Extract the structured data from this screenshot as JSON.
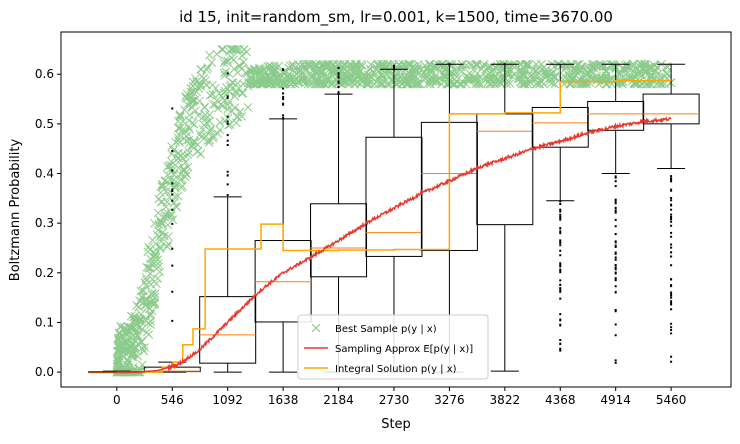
{
  "chart_data": {
    "type": "line",
    "title": "id 15, init=random_sm, lr=0.001, k=1500, time=3670.00",
    "xlabel": "Step",
    "ylabel": "Boltzmann Probability",
    "xlim": [
      -550,
      6050
    ],
    "ylim": [
      -0.03,
      0.685
    ],
    "xticks": [
      0,
      546,
      1092,
      1638,
      2184,
      2730,
      3276,
      3822,
      4368,
      4914,
      5460
    ],
    "xtick_labels": [
      "0",
      "546",
      "1092",
      "1638",
      "2184",
      "2730",
      "3276",
      "3822",
      "4368",
      "4914",
      "5460"
    ],
    "yticks": [
      0.0,
      0.1,
      0.2,
      0.3,
      0.4,
      0.5,
      0.6
    ],
    "ytick_labels": [
      "0.0",
      "0.1",
      "0.2",
      "0.3",
      "0.4",
      "0.5",
      "0.6"
    ],
    "legend_position": "lower-center",
    "legend": [
      {
        "label": "Best Sample p(y | x)",
        "color": "#2ca02c",
        "marker": "x"
      },
      {
        "label": "Sampling Approx E[p(y | x)]",
        "color": "#e8392f",
        "marker": "line"
      },
      {
        "label": "Integral Solution p(y | x)",
        "color": "#ffa500",
        "marker": "line"
      }
    ],
    "boxplots": [
      {
        "x": 0,
        "q1": 0.0,
        "median": 0.0,
        "q3": 0.001,
        "whisker_low": 0.0,
        "whisker_high": 0.002
      },
      {
        "x": 546,
        "q1": 0.001,
        "median": 0.002,
        "q3": 0.01,
        "whisker_low": 0.0,
        "whisker_high": 0.02
      },
      {
        "x": 1092,
        "q1": 0.018,
        "median": 0.075,
        "q3": 0.152,
        "whisker_low": 0.0,
        "whisker_high": 0.353
      },
      {
        "x": 1638,
        "q1": 0.101,
        "median": 0.182,
        "q3": 0.265,
        "whisker_low": 0.0,
        "whisker_high": 0.51
      },
      {
        "x": 2184,
        "q1": 0.192,
        "median": 0.25,
        "q3": 0.339,
        "whisker_low": 0.0,
        "whisker_high": 0.56
      },
      {
        "x": 2730,
        "q1": 0.233,
        "median": 0.281,
        "q3": 0.473,
        "whisker_low": 0.0,
        "whisker_high": 0.61
      },
      {
        "x": 3276,
        "q1": 0.245,
        "median": 0.4,
        "q3": 0.503,
        "whisker_low": 0.0,
        "whisker_high": 0.62
      },
      {
        "x": 3822,
        "q1": 0.297,
        "median": 0.485,
        "q3": 0.52,
        "whisker_low": 0.002,
        "whisker_high": 0.62
      },
      {
        "x": 4368,
        "q1": 0.453,
        "median": 0.502,
        "q3": 0.533,
        "whisker_low": 0.345,
        "whisker_high": 0.62
      },
      {
        "x": 4914,
        "q1": 0.487,
        "median": 0.52,
        "q3": 0.545,
        "whisker_low": 0.4,
        "whisker_high": 0.62
      },
      {
        "x": 5460,
        "q1": 0.5,
        "median": 0.52,
        "q3": 0.56,
        "whisker_low": 0.41,
        "whisker_high": 0.62
      }
    ],
    "integral_solution": {
      "x": [
        0,
        400,
        450,
        550,
        650,
        750,
        870,
        1092,
        1420,
        1638,
        2000,
        2184,
        2500,
        2730,
        3000,
        3276,
        3400,
        3822,
        4100,
        4368,
        4500,
        4914,
        5200,
        5460
      ],
      "y": [
        0.0,
        0.0,
        0.01,
        0.02,
        0.055,
        0.087,
        0.248,
        0.248,
        0.298,
        0.245,
        0.245,
        0.246,
        0.246,
        0.247,
        0.247,
        0.52,
        0.52,
        0.522,
        0.522,
        0.585,
        0.585,
        0.587,
        0.587,
        0.587
      ]
    },
    "sampling_approx": {
      "x": [
        0,
        200,
        400,
        600,
        800,
        1000,
        1200,
        1400,
        1638,
        1900,
        2184,
        2500,
        2730,
        3000,
        3276,
        3600,
        3822,
        4100,
        4368,
        4700,
        4914,
        5200,
        5460
      ],
      "y": [
        0.0,
        0.0,
        0.003,
        0.015,
        0.042,
        0.082,
        0.122,
        0.162,
        0.2,
        0.23,
        0.265,
        0.305,
        0.33,
        0.36,
        0.385,
        0.415,
        0.43,
        0.45,
        0.465,
        0.485,
        0.495,
        0.505,
        0.51
      ]
    },
    "best_sample_envelope": {
      "x": [
        0,
        100,
        200,
        300,
        400,
        500,
        600,
        700,
        800,
        900,
        1000,
        1100,
        1200,
        1400,
        1638,
        2000,
        2500,
        3000,
        4000,
        5000,
        5460
      ],
      "y": [
        0.0,
        0.01,
        0.05,
        0.15,
        0.25,
        0.34,
        0.42,
        0.48,
        0.52,
        0.55,
        0.57,
        0.58,
        0.585,
        0.59,
        0.595,
        0.6,
        0.6,
        0.6,
        0.6,
        0.6,
        0.6
      ]
    }
  }
}
